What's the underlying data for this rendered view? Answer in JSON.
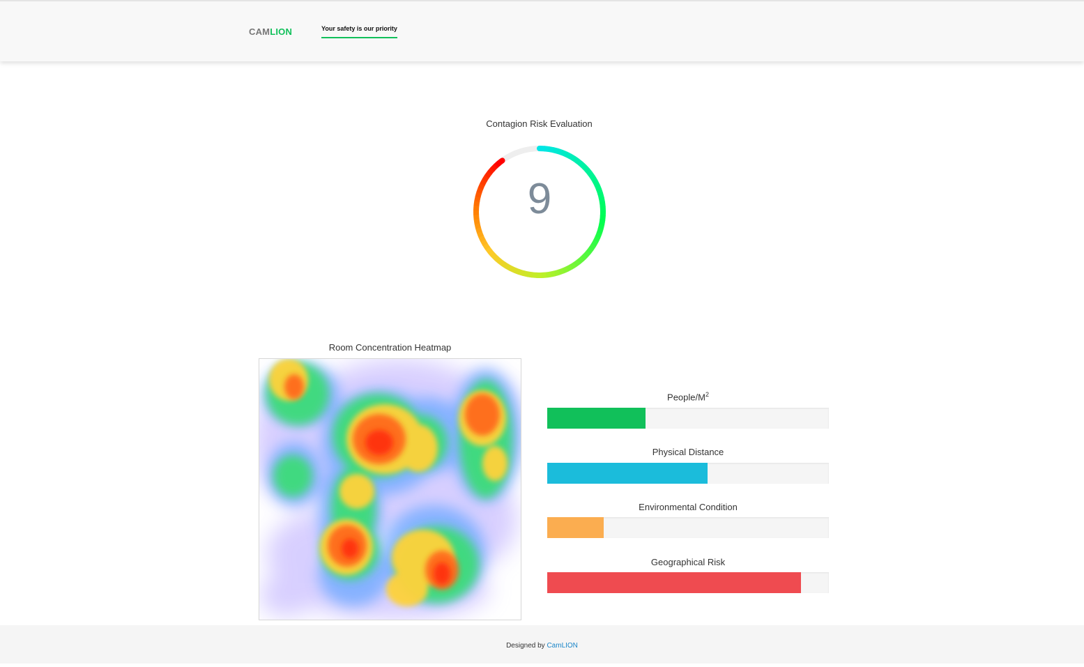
{
  "brand": {
    "part1": "CAM",
    "part2": "LION",
    "part1_color": "#777777",
    "part2_color": "#11c05a"
  },
  "nav": {
    "tagline": "Your safety is our priority"
  },
  "risk": {
    "title": "Contagion Risk Evaluation",
    "value": "9",
    "fraction": 0.9,
    "gradient_start": "#00e6e6",
    "gradient_end": "#ff0000"
  },
  "heatmap": {
    "title": "Room Concentration Heatmap"
  },
  "metrics": [
    {
      "label": "People/M",
      "sup": "2",
      "percent": 35,
      "color": "#11c05a"
    },
    {
      "label": "Physical Distance",
      "sup": "",
      "percent": 57,
      "color": "#1bbcdb"
    },
    {
      "label": "Environmental Condition",
      "sup": "",
      "percent": 20,
      "color": "#fbad50"
    },
    {
      "label": "Geographical Risk",
      "sup": "",
      "percent": 90,
      "color": "#ef4b50"
    }
  ],
  "footer": {
    "prefix": "Designed by",
    "link": "CamLION",
    "link_color": "#1a85c8"
  }
}
